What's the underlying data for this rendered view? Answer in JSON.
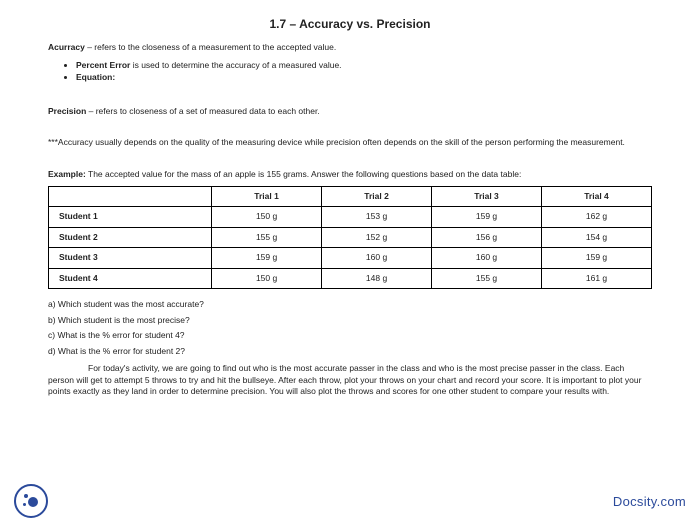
{
  "title": "1.7 – Accuracy vs. Precision",
  "accuracy": {
    "term": "Acurracy",
    "def": " – refers to the closeness of a measurement to the accepted value.",
    "bullets": [
      {
        "bold": "Percent Error",
        "rest": " is used to determine the accuracy of a measured value."
      },
      {
        "bold": "Equation:",
        "rest": ""
      }
    ]
  },
  "precision": {
    "term": "Precision",
    "def": " – refers to closeness of a set of measured data to each other."
  },
  "note": "***Accuracy usually depends on the quality of the measuring device while precision often depends on the skill of the person performing the measurement.",
  "example": {
    "label": "Example:",
    "text": " The accepted value for the mass of an apple is 155 grams.  Answer the following questions based on the data table:"
  },
  "table": {
    "columns": [
      "",
      "Trial 1",
      "Trial 2",
      "Trial 3",
      "Trial 4"
    ],
    "rows": [
      [
        "Student 1",
        "150 g",
        "153 g",
        "159 g",
        "162 g"
      ],
      [
        "Student 2",
        "155 g",
        "152 g",
        "156 g",
        "154 g"
      ],
      [
        "Student 3",
        "159 g",
        "160 g",
        "160 g",
        "159 g"
      ],
      [
        "Student 4",
        "150 g",
        "148 g",
        "155 g",
        "161 g"
      ]
    ],
    "border_color": "#000000",
    "cell_padding": 4,
    "header_bold": true
  },
  "questions": [
    "a) Which student was the most accurate?",
    "b) Which student is the most precise?",
    "c) What is the % error for student 4?",
    "d) What is the % error for student 2?"
  ],
  "activity": "For today's activity, we are going to find out who is the most accurate passer in the class and who is the most precise passer in the class.  Each person will get to attempt 5 throws to try and hit the bullseye.  After each throw, plot your throws on your chart and record your score.  It is important to plot your points exactly as they land in order to determine precision.  You will also plot the throws and scores for one other student to compare your results with.",
  "footer_brand": "Docsity.com",
  "colors": {
    "brand": "#2b4a9b",
    "text": "#222222",
    "background": "#ffffff"
  }
}
